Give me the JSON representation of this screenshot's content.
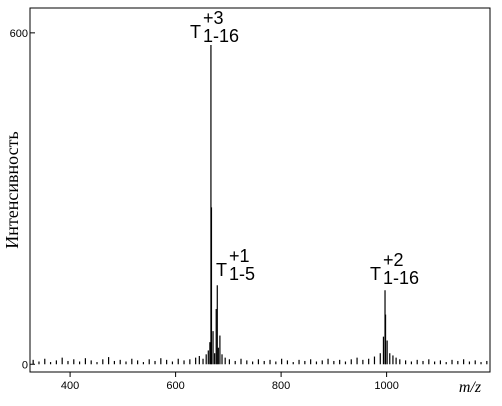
{
  "chart_data": {
    "type": "stem",
    "y_label": "Интенсивность",
    "x_label": "m/z",
    "annotations": [
      {
        "text": "T",
        "sup": "+3",
        "sub": "1-16"
      },
      {
        "text": "T",
        "sup": "+1",
        "sub": "1-5"
      },
      {
        "text": "T",
        "sup": "+2",
        "sub": "1-16"
      }
    ],
    "color": "#000000",
    "xlim": [
      324,
      1196
    ],
    "ylim": [
      -14,
      645
    ],
    "xticks": [
      400,
      600,
      800,
      1000
    ],
    "yticks": [
      0,
      600
    ],
    "x": [
      330,
      341,
      352,
      363,
      374,
      385,
      396,
      407,
      418,
      429,
      440,
      451,
      462,
      473,
      484,
      495,
      506,
      517,
      528,
      539,
      550,
      561,
      572,
      583,
      594,
      605,
      616,
      627,
      638,
      645,
      652,
      658,
      662,
      665,
      667,
      668,
      671,
      674,
      677,
      679,
      681,
      684,
      688,
      694,
      702,
      713,
      724,
      735,
      746,
      757,
      768,
      779,
      790,
      801,
      812,
      823,
      834,
      845,
      856,
      867,
      878,
      889,
      900,
      911,
      922,
      933,
      944,
      955,
      966,
      977,
      988,
      994,
      997,
      998,
      1001,
      1006,
      1012,
      1018,
      1025,
      1036,
      1047,
      1058,
      1069,
      1080,
      1091,
      1102,
      1113,
      1124,
      1135,
      1146,
      1157,
      1168,
      1179,
      1190
    ],
    "values": [
      8,
      5,
      10,
      4,
      7,
      12,
      6,
      9,
      5,
      11,
      7,
      4,
      9,
      13,
      6,
      8,
      5,
      10,
      7,
      4,
      9,
      6,
      11,
      8,
      5,
      10,
      7,
      9,
      12,
      15,
      10,
      18,
      25,
      40,
      578,
      284,
      60,
      20,
      100,
      143,
      30,
      52,
      18,
      12,
      9,
      6,
      10,
      7,
      5,
      9,
      6,
      8,
      5,
      10,
      7,
      4,
      8,
      6,
      9,
      5,
      7,
      10,
      6,
      8,
      5,
      9,
      12,
      8,
      10,
      14,
      20,
      50,
      134,
      90,
      43,
      20,
      16,
      12,
      9,
      7,
      5,
      8,
      6,
      9,
      5,
      7,
      4,
      8,
      6,
      9,
      5,
      7,
      4,
      6
    ]
  }
}
